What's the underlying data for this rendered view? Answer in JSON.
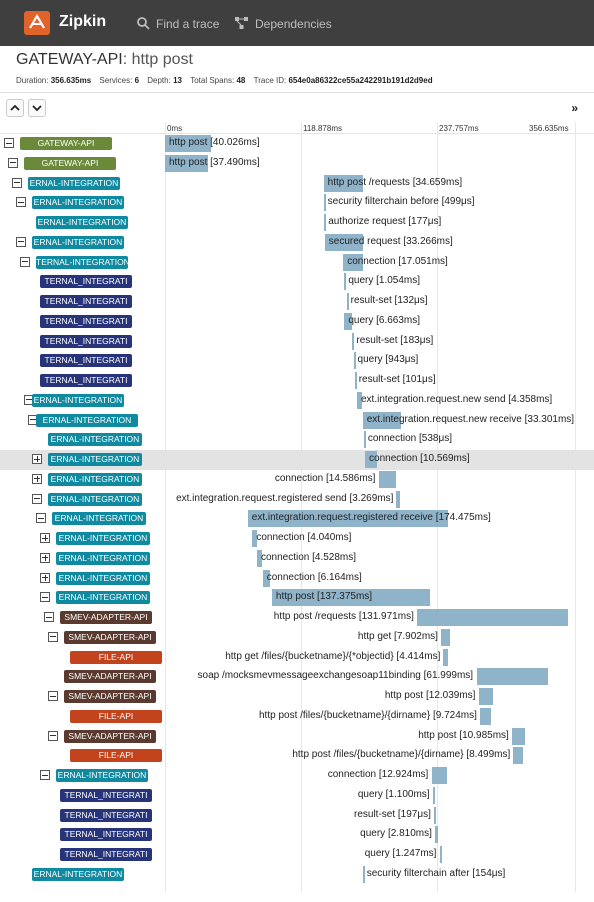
{
  "nav": {
    "brand": "Zipkin",
    "find_trace": "Find a trace",
    "dependencies": "Dependencies"
  },
  "trace": {
    "service": "GATEWAY-API",
    "span_name": ": http post",
    "duration_label": "Duration:",
    "duration": "356.635ms",
    "services_label": "Services:",
    "services": "6",
    "depth_label": "Depth:",
    "depth": "13",
    "total_spans_label": "Total Spans:",
    "total_spans": "48",
    "trace_id_label": "Trace ID:",
    "trace_id": "654e0a86322ce55a242291b191d2d9ed"
  },
  "toolbar": {
    "up": "⌃",
    "down": "⌄",
    "expand": "»"
  },
  "ticks": [
    "0ms",
    "118.878ms",
    "237.757ms",
    "356.635ms"
  ],
  "colors": {
    "gateway": "#6a8a3a",
    "integration": "#0f8aa0",
    "integration_dark": "#27347a",
    "smev": "#5a3a2e",
    "file": "#c2431c",
    "bar": "#8fb4c9"
  },
  "rows": [
    {
      "svc": "GATEWAY-API",
      "kind": "gateway",
      "toggle": "minus",
      "label": "http post [40.026ms]",
      "start": 0,
      "dur": 40.026
    },
    {
      "svc": "GATEWAY-API",
      "kind": "gateway",
      "toggle": "minus",
      "label": "http post [37.490ms]",
      "start": 0,
      "dur": 37.49
    },
    {
      "svc": "ERNAL-INTEGRATION",
      "kind": "integration",
      "toggle": "minus",
      "label": "http post /requests [34.659ms]",
      "start": 138,
      "dur": 34.659
    },
    {
      "svc": "ERNAL-INTEGRATION",
      "kind": "integration",
      "toggle": "minus",
      "label": "security filterchain before [499μs]",
      "start": 138,
      "dur": 0.499
    },
    {
      "svc": "ERNAL-INTEGRATION",
      "kind": "integration",
      "toggle": "none",
      "label": "authorize request [177μs]",
      "start": 138.5,
      "dur": 0.177
    },
    {
      "svc": "ERNAL-INTEGRATION",
      "kind": "integration",
      "toggle": "minus",
      "label": "secured request [33.266ms]",
      "start": 139,
      "dur": 33.266
    },
    {
      "svc": "TERNAL-INTEGRATION",
      "kind": "integration",
      "toggle": "minus",
      "label": "connection [17.051ms]",
      "start": 155,
      "dur": 17.051
    },
    {
      "svc": "TERNAL_INTEGRATI",
      "kind": "integration_dark",
      "toggle": "none",
      "label": "query [1.054ms]",
      "start": 156,
      "dur": 1.054
    },
    {
      "svc": "TERNAL_INTEGRATI",
      "kind": "integration_dark",
      "toggle": "none",
      "label": "result-set [132μs]",
      "start": 158,
      "dur": 0.132
    },
    {
      "svc": "TERNAL_INTEGRATI",
      "kind": "integration_dark",
      "toggle": "none",
      "label": "query [6.663ms]",
      "start": 156,
      "dur": 6.663
    },
    {
      "svc": "TERNAL_INTEGRATI",
      "kind": "integration_dark",
      "toggle": "none",
      "label": "result-set [183μs]",
      "start": 163,
      "dur": 0.183
    },
    {
      "svc": "TERNAL_INTEGRATI",
      "kind": "integration_dark",
      "toggle": "none",
      "label": "query [943μs]",
      "start": 164,
      "dur": 0.943
    },
    {
      "svc": "TERNAL_INTEGRATI",
      "kind": "integration_dark",
      "toggle": "none",
      "label": "result-set [101μs]",
      "start": 165,
      "dur": 0.101
    },
    {
      "svc": "ERNAL-INTEGRATION",
      "kind": "integration",
      "toggle": "minus",
      "label": "ext.integration.request.new send [4.358ms]",
      "start": 167,
      "dur": 4.358
    },
    {
      "svc": "ERNAL-INTEGRATION",
      "kind": "integration",
      "toggle": "minus",
      "label": "ext.integration.request.new receive [33.301ms]",
      "start": 172,
      "dur": 33.301
    },
    {
      "svc": "ERNAL-INTEGRATION",
      "kind": "integration",
      "toggle": "none",
      "label": "connection [538μs]",
      "start": 173,
      "dur": 0.538
    },
    {
      "svc": "ERNAL-INTEGRATION",
      "kind": "integration",
      "toggle": "plus",
      "label": "connection [10.569ms]",
      "start": 174,
      "dur": 10.569,
      "hl": true
    },
    {
      "svc": "ERNAL-INTEGRATION",
      "kind": "integration",
      "toggle": "plus",
      "label": "connection [14.586ms]",
      "start": 186,
      "dur": 14.586,
      "labelLeft": true
    },
    {
      "svc": "ERNAL-INTEGRATION",
      "kind": "integration",
      "toggle": "minus",
      "label": "ext.integration.request.registered send [3.269ms]",
      "start": 201,
      "dur": 3.269,
      "labelLeft": true
    },
    {
      "svc": "ERNAL-INTEGRATION",
      "kind": "integration",
      "toggle": "minus",
      "label": "ext.integration.request.registered receive [174.475ms]",
      "start": 72,
      "dur": 174.475
    },
    {
      "svc": "ERNAL-INTEGRATION",
      "kind": "integration",
      "toggle": "plus",
      "label": "connection [4.040ms]",
      "start": 76,
      "dur": 4.04
    },
    {
      "svc": "ERNAL-INTEGRATION",
      "kind": "integration",
      "toggle": "plus",
      "label": "connection [4.528ms]",
      "start": 80,
      "dur": 4.528
    },
    {
      "svc": "ERNAL-INTEGRATION",
      "kind": "integration",
      "toggle": "plus",
      "label": "connection [6.164ms]",
      "start": 85,
      "dur": 6.164
    },
    {
      "svc": "ERNAL-INTEGRATION",
      "kind": "integration",
      "toggle": "minus",
      "label": "http post [137.375ms]",
      "start": 93,
      "dur": 137.375
    },
    {
      "svc": "SMEV-ADAPTER-API",
      "kind": "smev",
      "toggle": "minus",
      "label": "http post /requests [131.971ms]",
      "start": 219,
      "dur": 131.971,
      "labelLeft": true
    },
    {
      "svc": "SMEV-ADAPTER-API",
      "kind": "smev",
      "toggle": "minus",
      "label": "http get [7.902ms]",
      "start": 240,
      "dur": 7.902,
      "labelLeft": true
    },
    {
      "svc": "FILE-API",
      "kind": "file",
      "toggle": "none",
      "label": "http get /files/{bucketname}/{*objectid} [4.414ms]",
      "start": 242,
      "dur": 4.414,
      "labelLeft": true
    },
    {
      "svc": "SMEV-ADAPTER-API",
      "kind": "smev",
      "toggle": "none",
      "label": "soap /mocksmevmessageexchangesoap11binding [61.999ms]",
      "start": 271,
      "dur": 61.999,
      "labelLeft": true
    },
    {
      "svc": "SMEV-ADAPTER-API",
      "kind": "smev",
      "toggle": "minus",
      "label": "http post [12.039ms]",
      "start": 273,
      "dur": 12.039,
      "labelLeft": true
    },
    {
      "svc": "FILE-API",
      "kind": "file",
      "toggle": "none",
      "label": "http post /files/{bucketname}/{dirname} [9.724ms]",
      "start": 274,
      "dur": 9.724,
      "labelLeft": true
    },
    {
      "svc": "SMEV-ADAPTER-API",
      "kind": "smev",
      "toggle": "minus",
      "label": "http post [10.985ms]",
      "start": 302,
      "dur": 10.985,
      "labelLeft": true
    },
    {
      "svc": "FILE-API",
      "kind": "file",
      "toggle": "none",
      "label": "http post /files/{bucketname}/{dirname} [8.499ms]",
      "start": 303,
      "dur": 8.499,
      "labelLeft": true
    },
    {
      "svc": "ERNAL-INTEGRATION",
      "kind": "integration",
      "toggle": "minus",
      "label": "connection [12.924ms]",
      "start": 232,
      "dur": 12.924,
      "labelLeft": true
    },
    {
      "svc": "TERNAL_INTEGRATI",
      "kind": "integration_dark",
      "toggle": "none",
      "label": "query [1.100ms]",
      "start": 233,
      "dur": 1.1,
      "labelLeft": true
    },
    {
      "svc": "TERNAL_INTEGRATI",
      "kind": "integration_dark",
      "toggle": "none",
      "label": "result-set [197μs]",
      "start": 234,
      "dur": 0.197,
      "labelLeft": true
    },
    {
      "svc": "TERNAL_INTEGRATI",
      "kind": "integration_dark",
      "toggle": "none",
      "label": "query [2.810ms]",
      "start": 235,
      "dur": 2.81,
      "labelLeft": true
    },
    {
      "svc": "TERNAL_INTEGRATI",
      "kind": "integration_dark",
      "toggle": "none",
      "label": "query [1.247ms]",
      "start": 239,
      "dur": 1.247,
      "labelLeft": true
    },
    {
      "svc": "ERNAL-INTEGRATION",
      "kind": "integration",
      "toggle": "none",
      "label": "security filterchain after [154μs]",
      "start": 172,
      "dur": 0.154
    }
  ]
}
